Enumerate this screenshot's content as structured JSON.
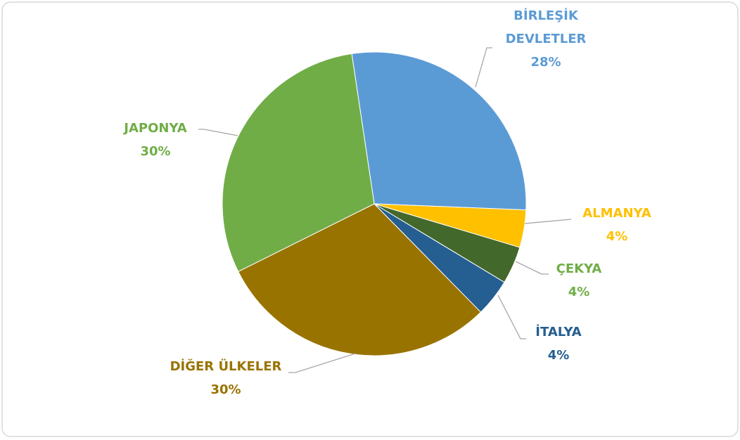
{
  "chart_data": {
    "type": "pie",
    "categories": [
      "BİRLEŞİK DEVLETLER",
      "ALMANYA",
      "ÇEKYA",
      "İTALYA",
      "DİĞER ÜLKELER",
      "JAPONYA"
    ],
    "values": [
      28,
      4,
      4,
      4,
      30,
      30
    ],
    "value_labels": [
      "28%",
      "4%",
      "4%",
      "4%",
      "30%",
      "30%"
    ],
    "colors": [
      "#5b9bd5",
      "#ffc000",
      "#43682b",
      "#255e91",
      "#997300",
      "#70ad47"
    ],
    "label_colors": [
      "#5b9bd5",
      "#ffc000",
      "#70ad47",
      "#255e91",
      "#997300",
      "#70ad47"
    ]
  }
}
